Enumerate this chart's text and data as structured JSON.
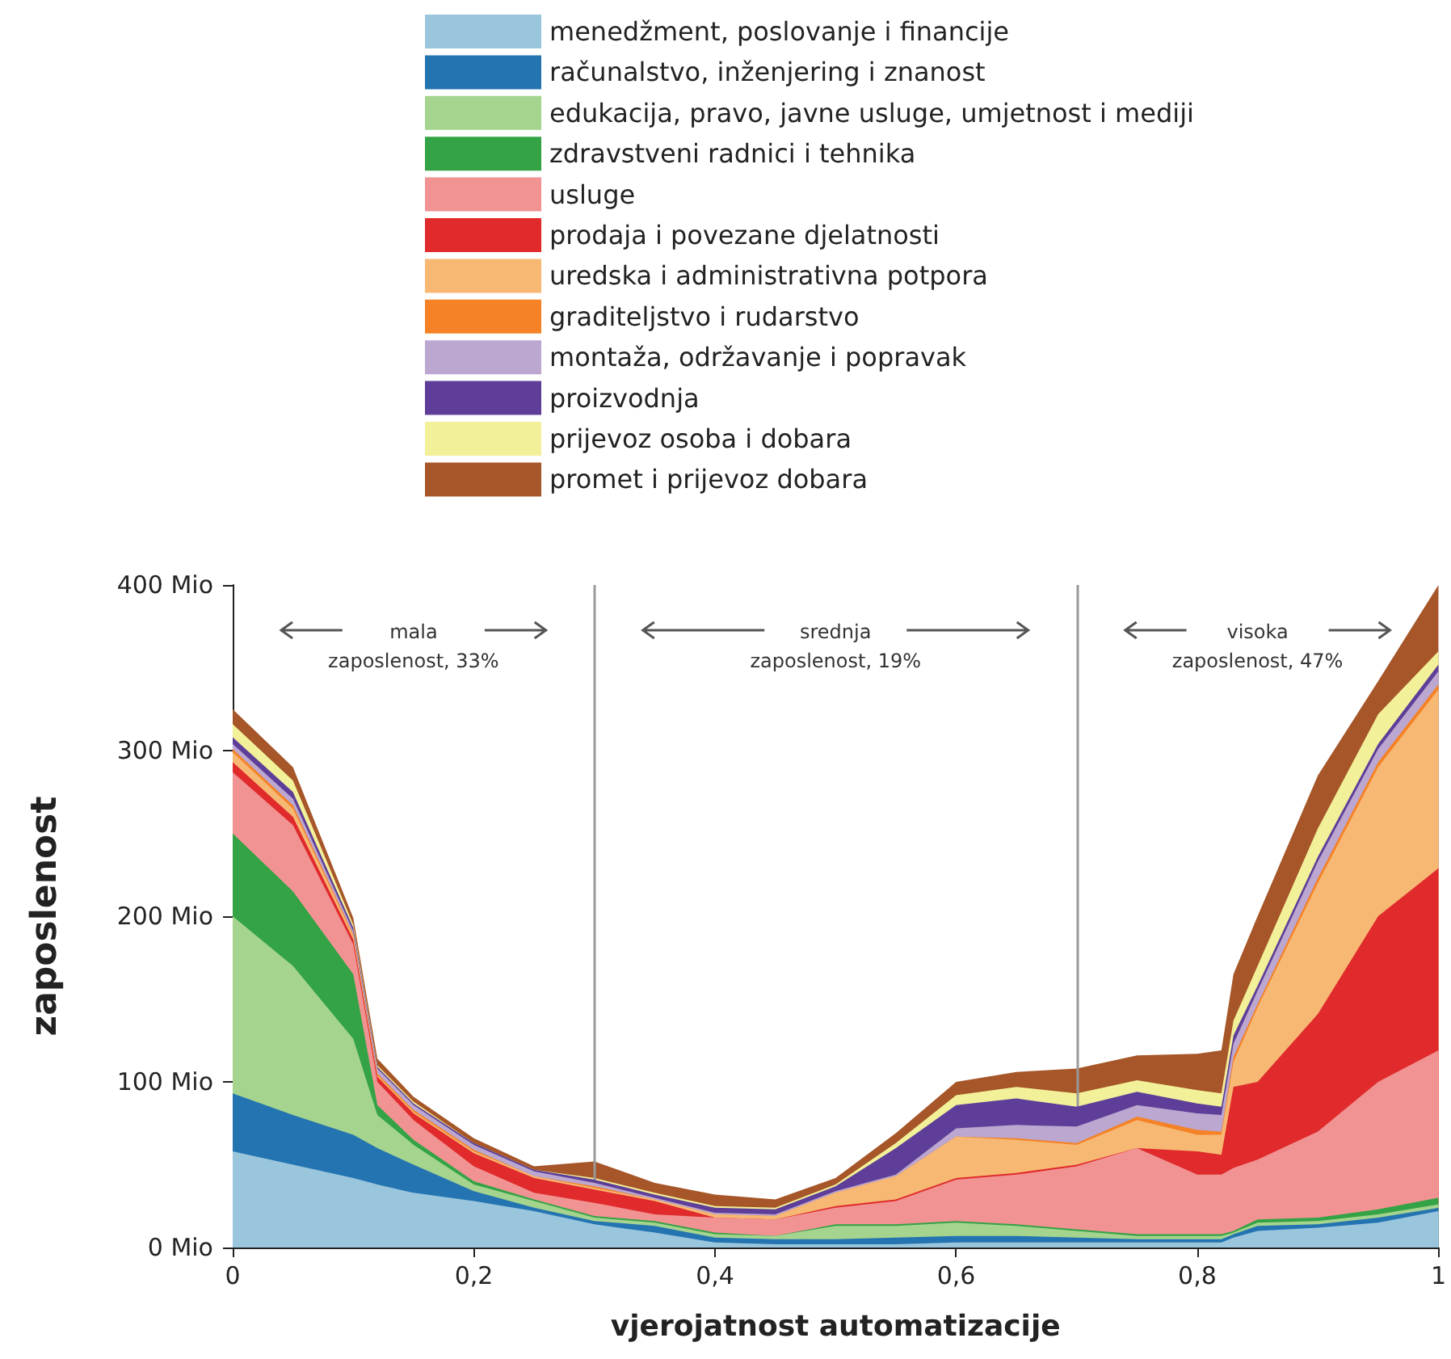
{
  "chart_data": {
    "type": "area",
    "stacked": true,
    "xlabel": "vjerojatnost automatizacije",
    "ylabel": "zaposlenost",
    "legend": "top",
    "grid": false,
    "x": [
      0,
      0.05,
      0.1,
      0.12,
      0.15,
      0.2,
      0.25,
      0.3,
      0.35,
      0.4,
      0.45,
      0.5,
      0.55,
      0.6,
      0.65,
      0.7,
      0.75,
      0.8,
      0.82,
      0.83,
      0.85,
      0.9,
      0.95,
      1
    ],
    "xlim": [
      0,
      1
    ],
    "xticks": [
      0,
      {
        "value": 0.2,
        "label": "0,2"
      },
      {
        "value": 0.4,
        "label": "0,4"
      },
      {
        "value": 0.6,
        "label": "0,6"
      },
      {
        "value": 0.8,
        "label": "0,8"
      },
      1
    ],
    "ylim": [
      0,
      400
    ],
    "yticks": [
      {
        "value": 0,
        "label": "0 Mio"
      },
      {
        "value": 100,
        "label": "100 Mio"
      },
      {
        "value": 200,
        "label": "200 Mio"
      },
      {
        "value": 300,
        "label": "300 Mio"
      },
      {
        "value": 400,
        "label": "400 Mio"
      }
    ],
    "series": [
      {
        "name": "menedžment, poslovanje i financije",
        "color": "#9ac6dd",
        "values": [
          58,
          50,
          42,
          38,
          33,
          28,
          22,
          14,
          9,
          3,
          2,
          2,
          2,
          3,
          3,
          3,
          3,
          3,
          3,
          6,
          10,
          12,
          15,
          22
        ]
      },
      {
        "name": "računalstvo, inženjering i znanost",
        "color": "#2474b1",
        "values": [
          35,
          30,
          26,
          22,
          17,
          6,
          2,
          2,
          4,
          3,
          3,
          3,
          4,
          4,
          4,
          3,
          2,
          2,
          2,
          2,
          3,
          2,
          3,
          2
        ]
      },
      {
        "name": "edukacija, pravo, javne usluge, umjetnost i mediji",
        "color": "#a5d48e",
        "values": [
          107,
          90,
          58,
          20,
          12,
          4,
          4,
          2,
          2,
          2,
          2,
          8,
          7,
          8,
          6,
          4,
          2,
          2,
          2,
          1,
          2,
          2,
          2,
          2
        ]
      },
      {
        "name": "zdravstveni radnici i tehnika",
        "color": "#33a345",
        "values": [
          50,
          45,
          39,
          6,
          3,
          2,
          1,
          1,
          1,
          1,
          0,
          1,
          1,
          1,
          1,
          1,
          1,
          1,
          1,
          1,
          2,
          2,
          3,
          4
        ]
      },
      {
        "name": "usluge",
        "color": "#f19393",
        "values": [
          37,
          40,
          18,
          14,
          12,
          9,
          4,
          8,
          4,
          9,
          10,
          10,
          14,
          25,
          30,
          38,
          52,
          36,
          36,
          38,
          36,
          52,
          77,
          89
        ]
      },
      {
        "name": "prodaja i povezane djelatnosti",
        "color": "#e02a2b",
        "values": [
          6,
          5,
          3,
          3,
          4,
          8,
          9,
          8,
          8,
          0,
          0,
          1,
          1,
          1,
          1,
          1,
          0,
          14,
          12,
          49,
          47,
          71,
          100,
          110
        ]
      },
      {
        "name": "uredska i administrativna potpora",
        "color": "#f7b874",
        "values": [
          6,
          5,
          2,
          1,
          1,
          1,
          1,
          1,
          1,
          2,
          2,
          8,
          14,
          25,
          20,
          12,
          17,
          10,
          12,
          15,
          45,
          79,
          90,
          108
        ]
      },
      {
        "name": "graditeljstvo i rudarstvo",
        "color": "#f58226",
        "values": [
          2,
          2,
          1,
          1,
          1,
          1,
          0,
          1,
          0,
          0,
          0,
          0,
          0,
          0,
          1,
          1,
          2,
          3,
          2,
          3,
          2,
          3,
          3,
          3
        ]
      },
      {
        "name": "montaža, održavanje i popravak",
        "color": "#bba7d0",
        "values": [
          3,
          4,
          2,
          3,
          3,
          3,
          3,
          2,
          1,
          1,
          1,
          1,
          1,
          5,
          8,
          10,
          7,
          10,
          10,
          8,
          8,
          10,
          8,
          8
        ]
      },
      {
        "name": "proizvodnja",
        "color": "#5e3e98",
        "values": [
          4,
          4,
          2,
          1,
          1,
          1,
          1,
          2,
          2,
          3,
          3,
          3,
          16,
          14,
          16,
          12,
          8,
          6,
          5,
          5,
          3,
          3,
          3,
          4
        ]
      },
      {
        "name": "prijevoz osoba i dobara",
        "color": "#f3f09a",
        "values": [
          8,
          7,
          2,
          1,
          1,
          0,
          0,
          1,
          1,
          1,
          1,
          1,
          3,
          6,
          7,
          8,
          7,
          8,
          8,
          9,
          12,
          17,
          18,
          8
        ]
      },
      {
        "name": "promet i prijevoz dobara",
        "color": "#a65628",
        "values": [
          9,
          8,
          4,
          4,
          3,
          3,
          2,
          10,
          6,
          7,
          5,
          4,
          6,
          8,
          9,
          15,
          15,
          22,
          26,
          28,
          30,
          32,
          20,
          40
        ]
      }
    ],
    "ref_lines": [
      {
        "axis": "x",
        "value": 0.3,
        "color": "#999999"
      },
      {
        "axis": "x",
        "value": 0.7,
        "color": "#999999"
      }
    ],
    "annotations": [
      "mala\nzaposlenost, 33%",
      "srednja\nzaposlenost, 19%",
      "visoka\nzaposlenost, 47%"
    ]
  }
}
